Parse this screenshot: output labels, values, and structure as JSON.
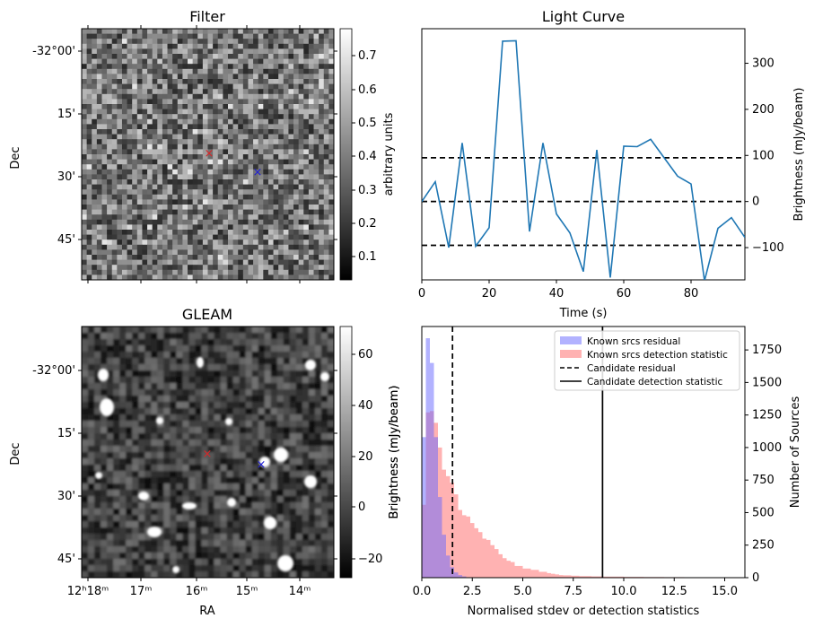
{
  "figure": {
    "filter_title": "Filter",
    "lightcurve_title": "Light Curve",
    "gleam_title": "GLEAM",
    "dec_label": "Dec",
    "ra_label": "RA",
    "filter_cbar_label": "arbitrary units",
    "gleam_cbar_label": "Brightness (mJy/beam)",
    "lc_ylabel": "Brightness (mJy/beam)",
    "lc_xlabel": "Time (s)",
    "hist_ylabel": "Number of Sources",
    "hist_xlabel": "Normalised stdev or detection statistics",
    "dec_ticks": [
      "-32°00'",
      "15'",
      "30'",
      "45'"
    ],
    "ra_ticks": [
      "12ʰ18ᵐ",
      "17ᵐ",
      "16ᵐ",
      "15ᵐ",
      "14ᵐ"
    ],
    "filter_cbar_ticks": [
      "0.1",
      "0.2",
      "0.3",
      "0.4",
      "0.5",
      "0.6",
      "0.7"
    ],
    "gleam_cbar_ticks": [
      "−20",
      "0",
      "20",
      "40",
      "60"
    ],
    "marker_color_red": "#d62728",
    "marker_color_blue": "#1f1fd6"
  },
  "chart_data": [
    {
      "type": "line",
      "title": "Light Curve",
      "xlabel": "Time (s)",
      "ylabel": "Brightness (mJy/beam)",
      "xlim": [
        0,
        96
      ],
      "ylim": [
        -170,
        375
      ],
      "x_ticks": [
        0,
        20,
        40,
        60,
        80
      ],
      "y_ticks": [
        -100,
        0,
        100,
        200,
        300
      ],
      "line_color": "#1f77b4",
      "series": [
        {
          "x": [
            0,
            4,
            8,
            12,
            16,
            20,
            24,
            28,
            32,
            36,
            40,
            44,
            48,
            52,
            56,
            60,
            64,
            68,
            72,
            76,
            80,
            84,
            88,
            92,
            96
          ],
          "y": [
            0,
            43,
            -100,
            127,
            -97,
            -57,
            348,
            349,
            -65,
            127,
            -27,
            -68,
            -152,
            112,
            -165,
            120,
            119,
            135,
            95,
            55,
            38,
            -172,
            -58,
            -35,
            -78
          ]
        }
      ],
      "hlines": [
        95,
        0,
        -95
      ]
    },
    {
      "type": "bar",
      "xlabel": "Normalised stdev or detection statistics",
      "ylabel_left": "Brightness (mJy/beam)",
      "ylabel_right": "Number of Sources",
      "xlim": [
        0,
        16
      ],
      "ylim": [
        0,
        1930
      ],
      "x_ticks": [
        "0.0",
        "2.5",
        "5.0",
        "7.5",
        "10.0",
        "12.5",
        "15.0"
      ],
      "y_ticks": [
        0,
        250,
        500,
        750,
        1000,
        1250,
        1500,
        1750
      ],
      "legend_position": "top-right",
      "legend": [
        "Known srcs residual",
        "Known srcs detection statistic",
        "Candidate residual",
        "Candidate detection statistic"
      ],
      "bin_width": 0.2,
      "series": [
        {
          "name": "Known srcs residual",
          "color": "#6666ff",
          "bin_starts": [
            0.0,
            0.2,
            0.4,
            0.6,
            0.8,
            1.0,
            1.2,
            1.4,
            1.6,
            1.8,
            2.0
          ],
          "values": [
            1080,
            1840,
            1650,
            1080,
            620,
            330,
            170,
            80,
            40,
            20,
            10
          ]
        },
        {
          "name": "Known srcs detection statistic",
          "color": "#ff6666",
          "bin_starts": [
            0.0,
            0.2,
            0.4,
            0.6,
            0.8,
            1.0,
            1.2,
            1.4,
            1.6,
            1.8,
            2.0,
            2.2,
            2.4,
            2.6,
            2.8,
            3.0,
            3.2,
            3.4,
            3.6,
            3.8,
            4.0,
            4.2,
            4.4,
            4.6,
            4.8,
            5.0,
            5.2,
            5.4,
            5.6,
            5.8,
            6.0,
            6.2,
            6.4,
            6.6,
            6.8,
            7.0,
            7.4,
            7.8,
            8.4,
            9.0,
            10.0,
            11.0,
            12.0,
            13.0,
            15.0
          ],
          "values": [
            560,
            1270,
            1280,
            1190,
            1000,
            830,
            780,
            730,
            640,
            520,
            480,
            470,
            420,
            380,
            350,
            300,
            290,
            250,
            220,
            180,
            150,
            130,
            120,
            90,
            90,
            70,
            70,
            60,
            60,
            45,
            45,
            35,
            30,
            25,
            20,
            18,
            15,
            12,
            10,
            8,
            6,
            5,
            4,
            3,
            2
          ]
        }
      ],
      "vlines": [
        {
          "name": "Candidate residual",
          "x": 1.52,
          "style": "dashed"
        },
        {
          "name": "Candidate detection statistic",
          "x": 8.95,
          "style": "solid"
        }
      ]
    }
  ]
}
